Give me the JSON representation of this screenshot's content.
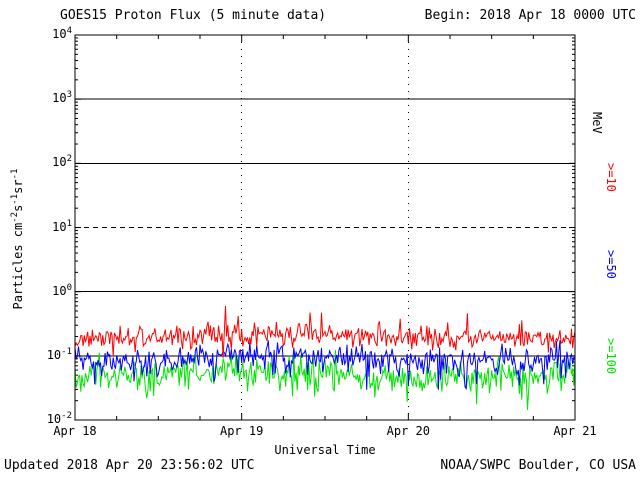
{
  "header": {
    "title": "GOES15 Proton Flux (5 minute data)",
    "begin_label": "Begin: 2018 Apr 18 0000 UTC"
  },
  "footer": {
    "updated": "Updated 2018 Apr 20 23:56:02 UTC",
    "source": "NOAA/SWPC Boulder, CO USA"
  },
  "chart_data": {
    "type": "line",
    "title": "GOES15 Proton Flux (5 minute data)",
    "xlabel": "Universal Time",
    "ylabel": "Particles cm-2 s-1 sr-1",
    "ylabel_segments": [
      {
        "t": "Particles  cm"
      },
      {
        "t": "-2",
        "sup": true
      },
      {
        "t": "s"
      },
      {
        "t": "-1",
        "sup": true
      },
      {
        "t": "sr"
      },
      {
        "t": "-1",
        "sup": true
      }
    ],
    "x_ticks": [
      {
        "label": "Apr 18",
        "hour": 0
      },
      {
        "label": "Apr 19",
        "hour": 24
      },
      {
        "label": "Apr 20",
        "hour": 48
      },
      {
        "label": "Apr 21",
        "hour": 72
      }
    ],
    "x_range_hours": [
      0,
      72
    ],
    "y_log_range": [
      -2,
      4
    ],
    "y_tick_exponents": [
      4,
      3,
      2,
      1,
      0,
      -1,
      -2
    ],
    "grid": {
      "horizontal_solid_exponents": [
        3,
        2,
        0,
        -1
      ],
      "horizontal_dashed_exponents": [
        1
      ],
      "vertical_dashed_hours": [
        24,
        48
      ]
    },
    "right_axis_labels": [
      {
        "text": "MeV",
        "color": "#000000"
      },
      {
        "text": ">=10",
        "color": "#ff0000"
      },
      {
        "text": ">=50",
        "color": "#0000ff"
      },
      {
        "text": ">=100",
        "color": "#00e400"
      }
    ],
    "series": [
      {
        "name": ">=10 MeV proton flux",
        "color": "#ff0000",
        "threshold_mev": 10,
        "approx_mean_flux": 0.2,
        "approx_range": [
          0.1,
          0.45
        ],
        "log10_mean": -0.7,
        "log10_std": 0.09,
        "wander_amp": 0.05,
        "wander_period": 9,
        "spike_prob": 0.05,
        "spike_amp": 0.3,
        "dip_prob": 0.03,
        "dip_depth": 0.15,
        "seed": 11,
        "points_per_hour": 6,
        "end_hour": 71.93
      },
      {
        "name": ">=50 MeV proton flux",
        "color": "#0000ff",
        "threshold_mev": 50,
        "approx_mean_flux": 0.09,
        "approx_range": [
          0.03,
          0.16
        ],
        "log10_mean": -1.04,
        "log10_std": 0.1,
        "wander_amp": 0.04,
        "wander_period": 8,
        "spike_prob": 0.02,
        "spike_amp": 0.1,
        "dip_prob": 0.1,
        "dip_depth": 0.35,
        "seed": 23,
        "points_per_hour": 6,
        "end_hour": 71.93
      },
      {
        "name": ">=100 MeV proton flux",
        "color": "#00e400",
        "threshold_mev": 100,
        "approx_mean_flux": 0.05,
        "approx_range": [
          0.02,
          0.09
        ],
        "log10_mean": -1.28,
        "log10_std": 0.12,
        "wander_amp": 0.05,
        "wander_period": 10,
        "spike_prob": 0.02,
        "spike_amp": 0.12,
        "dip_prob": 0.14,
        "dip_depth": 0.35,
        "seed": 37,
        "points_per_hour": 6,
        "end_hour": 71.93
      }
    ]
  }
}
